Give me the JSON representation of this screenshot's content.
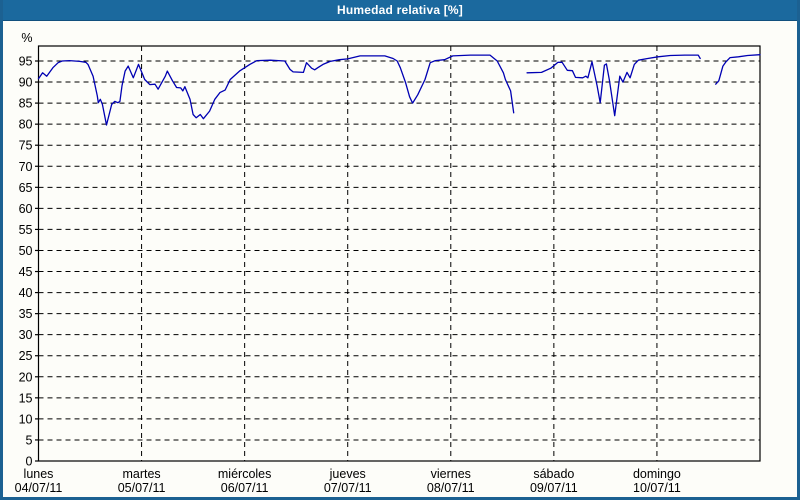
{
  "window": {
    "title": "Humedad relativa [%]"
  },
  "colors": {
    "titlebar_bg": "#1b699e",
    "titlebar_text": "#ffffff",
    "frame_border": "#1c6192",
    "panel_bg": "#fdfdf9",
    "grid": "#000000",
    "axis": "#000000",
    "label_text": "#000000",
    "line": "#0000b3"
  },
  "chart_data": {
    "type": "line",
    "title": "Humedad relativa [%]",
    "xlabel": "",
    "ylabel": "%",
    "ylim": [
      0,
      98.5
    ],
    "yticks": [
      0,
      5,
      10,
      15,
      20,
      25,
      30,
      35,
      40,
      45,
      50,
      55,
      60,
      65,
      70,
      75,
      80,
      85,
      90,
      95
    ],
    "grid": "dashed horizontal lines every 5%, dashed vertical lines at each day boundary",
    "legend_position": "none",
    "x_unit": "days (0 = lunes 04/07/11 00:00, axis spans 7 days)",
    "x_days": [
      {
        "name": "lunes",
        "date": "04/07/11"
      },
      {
        "name": "martes",
        "date": "05/07/11"
      },
      {
        "name": "miércoles",
        "date": "06/07/11"
      },
      {
        "name": "jueves",
        "date": "07/07/11"
      },
      {
        "name": "viernes",
        "date": "08/07/11"
      },
      {
        "name": "sábado",
        "date": "09/07/11"
      },
      {
        "name": "domingo",
        "date": "10/07/11"
      }
    ],
    "series": [
      {
        "name": "Humedad relativa [%]",
        "color": "#0000b3",
        "note": "three segments separated by data gaps (late viernes and mid domingo)",
        "segments": [
          [
            [
              0.0,
              90.8
            ],
            [
              0.04,
              92.2
            ],
            [
              0.08,
              91.4
            ],
            [
              0.14,
              93.4
            ],
            [
              0.19,
              94.6
            ],
            [
              0.23,
              95.0
            ],
            [
              0.3,
              95.1
            ],
            [
              0.4,
              94.9
            ],
            [
              0.46,
              94.7
            ],
            [
              0.48,
              94.2
            ],
            [
              0.53,
              91.4
            ],
            [
              0.57,
              86.7
            ],
            [
              0.58,
              85.1
            ],
            [
              0.6,
              85.9
            ],
            [
              0.62,
              84.7
            ],
            [
              0.66,
              79.8
            ],
            [
              0.71,
              84.7
            ],
            [
              0.74,
              85.4
            ],
            [
              0.77,
              85.1
            ],
            [
              0.79,
              85.4
            ],
            [
              0.81,
              89.1
            ],
            [
              0.84,
              92.6
            ],
            [
              0.87,
              93.8
            ],
            [
              0.92,
              91.0
            ],
            [
              0.97,
              94.2
            ],
            [
              1.03,
              90.6
            ],
            [
              1.08,
              89.4
            ],
            [
              1.13,
              89.5
            ],
            [
              1.16,
              88.3
            ],
            [
              1.23,
              91.4
            ],
            [
              1.25,
              92.6
            ],
            [
              1.3,
              90.3
            ],
            [
              1.34,
              88.7
            ],
            [
              1.38,
              88.6
            ],
            [
              1.4,
              87.9
            ],
            [
              1.42,
              88.9
            ],
            [
              1.47,
              85.9
            ],
            [
              1.5,
              82.3
            ],
            [
              1.53,
              81.5
            ],
            [
              1.57,
              82.3
            ],
            [
              1.6,
              81.3
            ],
            [
              1.66,
              83.1
            ],
            [
              1.71,
              85.9
            ],
            [
              1.76,
              87.5
            ],
            [
              1.81,
              88.1
            ],
            [
              1.86,
              90.6
            ],
            [
              1.95,
              92.6
            ],
            [
              2.05,
              94.2
            ],
            [
              2.12,
              95.1
            ],
            [
              2.25,
              95.2
            ],
            [
              2.39,
              95.0
            ],
            [
              2.44,
              93.0
            ],
            [
              2.47,
              92.4
            ],
            [
              2.57,
              92.3
            ],
            [
              2.6,
              94.6
            ],
            [
              2.65,
              93.3
            ],
            [
              2.68,
              92.9
            ],
            [
              2.71,
              93.4
            ],
            [
              2.76,
              94.2
            ],
            [
              2.83,
              94.9
            ],
            [
              2.92,
              95.3
            ],
            [
              3.0,
              95.5
            ],
            [
              3.12,
              96.2
            ],
            [
              3.36,
              96.2
            ],
            [
              3.44,
              95.6
            ],
            [
              3.48,
              95.0
            ],
            [
              3.51,
              93.4
            ],
            [
              3.56,
              90.0
            ],
            [
              3.6,
              86.5
            ],
            [
              3.63,
              85.0
            ],
            [
              3.68,
              87.0
            ],
            [
              3.75,
              90.6
            ],
            [
              3.8,
              94.6
            ],
            [
              3.85,
              95.1
            ],
            [
              3.94,
              95.3
            ],
            [
              4.02,
              96.2
            ],
            [
              4.19,
              96.4
            ],
            [
              4.38,
              96.4
            ],
            [
              4.45,
              95.0
            ],
            [
              4.51,
              92.2
            ],
            [
              4.53,
              90.6
            ],
            [
              4.58,
              87.9
            ],
            [
              4.61,
              82.7
            ]
          ],
          [
            [
              4.74,
              92.2
            ],
            [
              4.88,
              92.3
            ],
            [
              4.97,
              93.3
            ],
            [
              5.04,
              94.7
            ],
            [
              5.08,
              94.7
            ],
            [
              5.13,
              92.8
            ],
            [
              5.18,
              92.7
            ],
            [
              5.21,
              91.1
            ],
            [
              5.28,
              91.0
            ],
            [
              5.31,
              91.4
            ],
            [
              5.33,
              91.0
            ],
            [
              5.37,
              94.8
            ],
            [
              5.42,
              89.1
            ],
            [
              5.45,
              85.1
            ],
            [
              5.49,
              94.0
            ],
            [
              5.51,
              94.3
            ],
            [
              5.54,
              90.3
            ],
            [
              5.59,
              82.0
            ],
            [
              5.64,
              91.4
            ],
            [
              5.67,
              90.0
            ],
            [
              5.71,
              92.3
            ],
            [
              5.74,
              91.0
            ],
            [
              5.78,
              94.2
            ],
            [
              5.82,
              95.2
            ],
            [
              5.91,
              95.6
            ],
            [
              6.01,
              96.0
            ],
            [
              6.13,
              96.3
            ],
            [
              6.27,
              96.4
            ],
            [
              6.4,
              96.4
            ],
            [
              6.42,
              95.6
            ]
          ],
          [
            [
              6.57,
              89.5
            ],
            [
              6.6,
              90.3
            ],
            [
              6.64,
              93.8
            ],
            [
              6.67,
              94.8
            ],
            [
              6.71,
              95.8
            ],
            [
              6.79,
              96.0
            ],
            [
              6.88,
              96.3
            ],
            [
              7.0,
              96.5
            ]
          ]
        ]
      }
    ]
  }
}
